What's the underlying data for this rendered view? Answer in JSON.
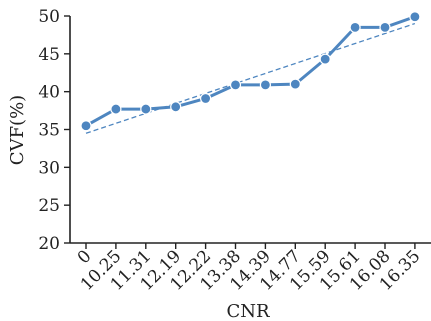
{
  "chart_data": {
    "type": "line",
    "categories": [
      "0",
      "10.25",
      "11.31",
      "12.19",
      "12.22",
      "13.38",
      "14.39",
      "14.77",
      "15.59",
      "15.61",
      "16.08",
      "16.35"
    ],
    "series": [
      {
        "values": [
          35.5,
          37.7,
          37.7,
          38.0,
          39.1,
          40.9,
          40.9,
          41.0,
          44.3,
          48.5,
          48.5,
          49.9
        ]
      }
    ],
    "trendline": {
      "style": "dashed",
      "start": 34.5,
      "end": 49.0
    },
    "xlabel": "CNR",
    "ylabel": "CVF(%)",
    "ylim": [
      20,
      50
    ],
    "yticks": [
      20,
      25,
      30,
      35,
      40,
      45,
      50
    ],
    "grid": false,
    "legend": "none",
    "colors": {
      "series": "#4e86c0",
      "axis": "#222222"
    }
  }
}
